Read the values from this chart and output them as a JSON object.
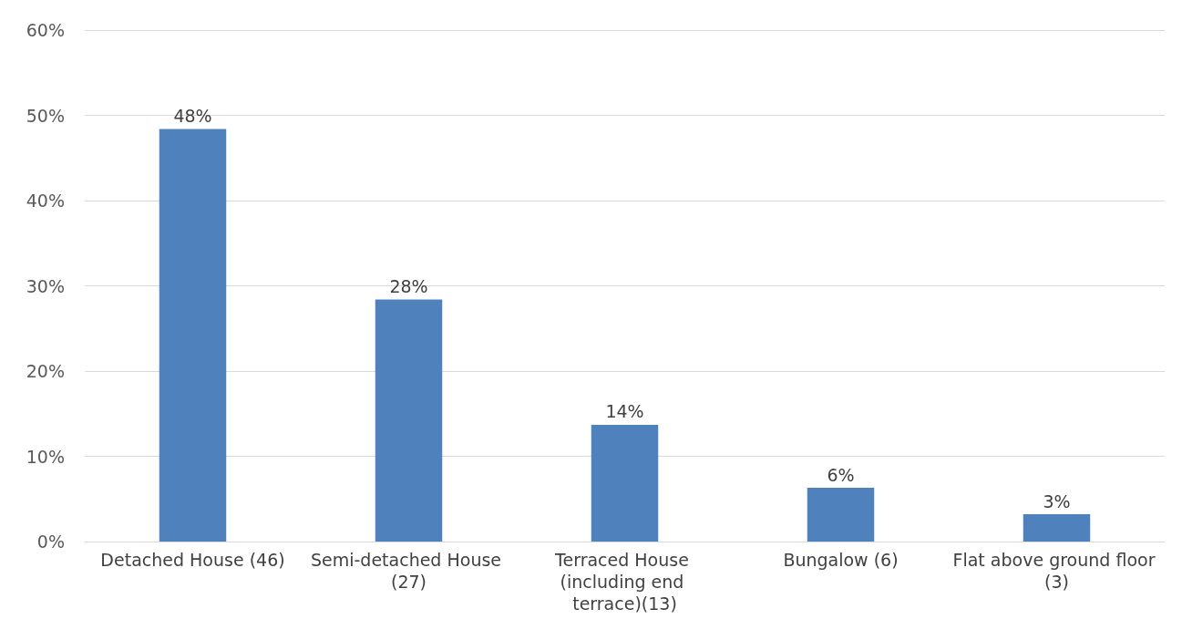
{
  "chart_data": {
    "type": "bar",
    "categories": [
      "Detached House (46)",
      "Semi-detached House (27)",
      "Terraced House (including end terrace)(13)",
      "Bungalow (6)",
      "Flat above ground floor (3)"
    ],
    "values": [
      48.4,
      28.4,
      13.7,
      6.3,
      3.2
    ],
    "value_labels": [
      "48%",
      "28%",
      "14%",
      "6%",
      "3%"
    ],
    "color": "#4f81bd",
    "ylim": [
      0,
      60
    ],
    "yticks": [
      {
        "value": 0,
        "label": "0%"
      },
      {
        "value": 10,
        "label": "10%"
      },
      {
        "value": 20,
        "label": "20%"
      },
      {
        "value": 30,
        "label": "30%"
      },
      {
        "value": 40,
        "label": "40%"
      },
      {
        "value": 50,
        "label": "50%"
      },
      {
        "value": 60,
        "label": "60%"
      }
    ],
    "grid": "y"
  }
}
